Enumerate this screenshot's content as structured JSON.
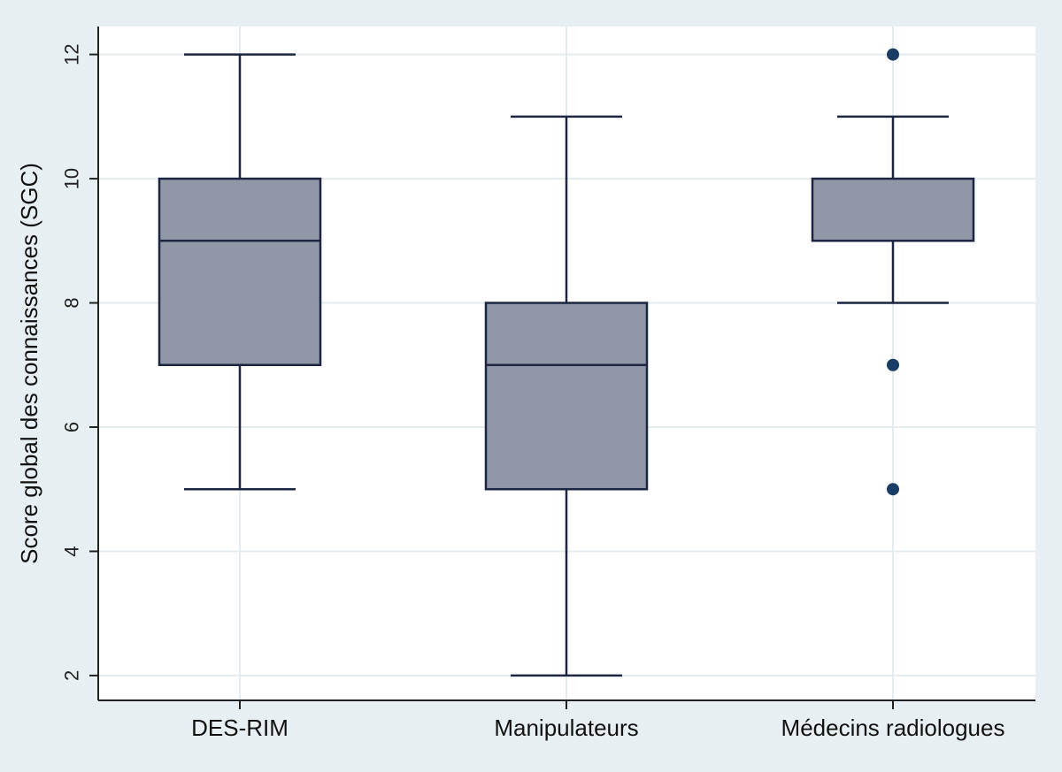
{
  "chart_data": {
    "type": "box",
    "title": "",
    "xlabel": "",
    "ylabel": "Score global des connaissances (SGC)",
    "ylim": [
      1.6,
      12.45
    ],
    "yticks": [
      2,
      4,
      6,
      8,
      10,
      12
    ],
    "grid": true,
    "categories": [
      "DES-RIM",
      "Manipulateurs",
      "Médecins radiologues"
    ],
    "boxes": [
      {
        "category": "DES-RIM",
        "whisker_low": 5,
        "q1": 7,
        "median": 9,
        "q3": 10,
        "whisker_high": 12,
        "outliers": []
      },
      {
        "category": "Manipulateurs",
        "whisker_low": 2,
        "q1": 5,
        "median": 7,
        "q3": 8,
        "whisker_high": 11,
        "outliers": []
      },
      {
        "category": "Médecins radiologues",
        "whisker_low": 8,
        "q1": 9,
        "median": 9,
        "q3": 10,
        "whisker_high": 11,
        "outliers": [
          12,
          7,
          5
        ]
      }
    ],
    "colors": {
      "box_fill": "#9297a8",
      "box_stroke": "#1c2541",
      "outlier": "#1a3d66",
      "grid": "#e4ecef",
      "plot_bg": "#ffffff",
      "page_bg": "#e8eff2"
    }
  }
}
